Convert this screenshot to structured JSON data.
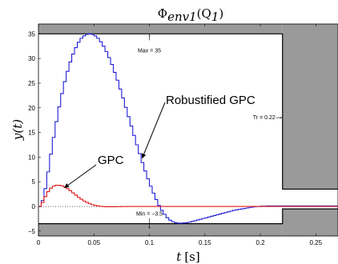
{
  "chart_data": {
    "type": "line",
    "title": "Φenv1(Q1)",
    "title_main": "Φ",
    "title_sub": "env1",
    "title_arg": "(Q",
    "title_arg_sub": "1",
    "title_close": ")",
    "xlabel": "t [s]",
    "xlabel_var": "t",
    "xlabel_unit": "[s]",
    "ylabel": "y(t)",
    "xlim": [
      0,
      0.27
    ],
    "ylim": [
      -6,
      37
    ],
    "xticks": [
      0,
      0.05,
      0.1,
      0.15,
      0.2,
      0.25
    ],
    "xtick_labels": [
      "0",
      "0.05",
      "0.1",
      "0.15",
      "0.2",
      "0.25"
    ],
    "yticks": [
      -5,
      0,
      5,
      10,
      15,
      20,
      25,
      30,
      35
    ],
    "ytick_labels": [
      "−5",
      "0",
      "5",
      "10",
      "15",
      "20",
      "25",
      "30",
      "35"
    ],
    "grid": false,
    "envelope": {
      "max": 35,
      "min": -3.5,
      "tr": 0.22,
      "settle_band": [
        -0.5,
        3.5
      ],
      "color": "#9a9a9a"
    },
    "annotations": {
      "max_label": "Max = 35",
      "min_label": "Min = −3.5",
      "tr_label": "Tr = 0.22",
      "robust_label": "Robustified GPC",
      "gpc_label": "GPC"
    },
    "series": [
      {
        "name": "Robustified GPC",
        "color": "#1f1fd6",
        "step": true,
        "x": [
          0,
          0.0025,
          0.005,
          0.0075,
          0.01,
          0.0125,
          0.015,
          0.0175,
          0.02,
          0.0225,
          0.025,
          0.0275,
          0.03,
          0.0325,
          0.035,
          0.0375,
          0.04,
          0.0425,
          0.045,
          0.0475,
          0.05,
          0.0525,
          0.055,
          0.0575,
          0.06,
          0.0625,
          0.065,
          0.0675,
          0.07,
          0.0725,
          0.075,
          0.0775,
          0.08,
          0.0825,
          0.085,
          0.0875,
          0.09,
          0.0925,
          0.095,
          0.0975,
          0.1,
          0.1025,
          0.105,
          0.1075,
          0.11,
          0.1125,
          0.115,
          0.1175,
          0.12,
          0.1225,
          0.125,
          0.1275,
          0.13,
          0.1325,
          0.135,
          0.1375,
          0.14,
          0.1425,
          0.145,
          0.1475,
          0.15,
          0.1525,
          0.155,
          0.1575,
          0.16,
          0.1625,
          0.165,
          0.1675,
          0.17,
          0.1725,
          0.175,
          0.1775,
          0.18,
          0.1825,
          0.185,
          0.1875,
          0.19,
          0.1925,
          0.195,
          0.1975,
          0.2,
          0.2025,
          0.205,
          0.2075,
          0.21,
          0.2125,
          0.215,
          0.2175,
          0.22,
          0.2225,
          0.225,
          0.2275,
          0.23,
          0.2325,
          0.235,
          0.2375,
          0.24,
          0.2425,
          0.245,
          0.2475,
          0.25,
          0.2525,
          0.255,
          0.2575,
          0.26,
          0.2625,
          0.265,
          0.2675,
          0.27
        ],
        "y": [
          0,
          1.2,
          3.6,
          7,
          10.6,
          14,
          17.2,
          20.2,
          22.9,
          25.3,
          27.4,
          29.3,
          30.9,
          32.2,
          33.3,
          34.1,
          34.6,
          34.9,
          35,
          34.9,
          34.6,
          34.1,
          33.4,
          32.5,
          31.4,
          30.2,
          28.8,
          27.2,
          25.6,
          23.8,
          22,
          20.1,
          18.2,
          16.3,
          14.4,
          12.5,
          10.7,
          8.9,
          7.2,
          5.6,
          4.1,
          2.7,
          1.4,
          0.2,
          -0.8,
          -1.6,
          -2.3,
          -2.8,
          -3.1,
          -3.3,
          -3.4,
          -3.4,
          -3.35,
          -3.3,
          -3.2,
          -3.05,
          -2.9,
          -2.75,
          -2.6,
          -2.45,
          -2.3,
          -2.15,
          -2,
          -1.85,
          -1.7,
          -1.55,
          -1.4,
          -1.25,
          -1.1,
          -0.95,
          -0.8,
          -0.7,
          -0.6,
          -0.5,
          -0.4,
          -0.3,
          -0.2,
          -0.1,
          -0.05,
          0,
          0.05,
          0.05,
          0.1,
          0.1,
          0.1,
          0.1,
          0.1,
          0.1,
          0.1,
          0.1,
          0.1,
          0.1,
          0.1,
          0.1,
          0.1,
          0.1,
          0.1,
          0.1,
          0.1,
          0.1,
          0.1,
          0.1,
          0.1,
          0.1,
          0.1,
          0.1,
          0.1,
          0.1,
          0.1
        ]
      },
      {
        "name": "GPC",
        "color": "#e01818",
        "step": true,
        "x": [
          0,
          0.0025,
          0.005,
          0.0075,
          0.01,
          0.0125,
          0.015,
          0.0175,
          0.02,
          0.0225,
          0.025,
          0.0275,
          0.03,
          0.0325,
          0.035,
          0.0375,
          0.04,
          0.0425,
          0.045,
          0.0475,
          0.05,
          0.0525,
          0.055,
          0.0575,
          0.06,
          0.0625,
          0.065,
          0.0675,
          0.07,
          0.0725,
          0.075,
          0.0775,
          0.08,
          0.085,
          0.09,
          0.095,
          0.1,
          0.11,
          0.12,
          0.13,
          0.14,
          0.15,
          0.16,
          0.17,
          0.18,
          0.19,
          0.2,
          0.21,
          0.22,
          0.23,
          0.24,
          0.25,
          0.26,
          0.27
        ],
        "y": [
          0,
          0.8,
          2,
          3,
          3.7,
          4.1,
          4.3,
          4.3,
          4.2,
          3.95,
          3.6,
          3.2,
          2.75,
          2.3,
          1.85,
          1.45,
          1.1,
          0.8,
          0.55,
          0.35,
          0.2,
          0.1,
          0.02,
          -0.03,
          -0.06,
          -0.07,
          -0.07,
          -0.06,
          -0.05,
          -0.04,
          -0.03,
          -0.02,
          -0.01,
          0,
          0,
          0,
          0,
          0,
          0,
          0,
          0,
          0,
          0,
          0,
          0,
          0,
          0,
          0,
          0,
          0,
          0,
          0,
          0,
          0
        ]
      }
    ]
  }
}
